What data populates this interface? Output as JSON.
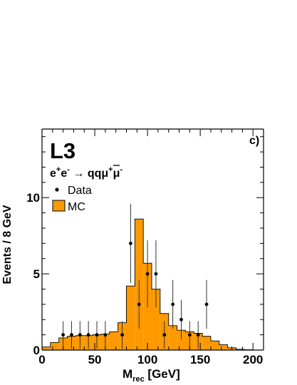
{
  "chart_data": {
    "type": "histogram",
    "experiment_label": "L3",
    "panel_label": "c)",
    "process": {
      "base": "e",
      "sup1": "+",
      "base2": "e",
      "sup2": "-",
      "arrow": " → ",
      "q": "q",
      "qbar": "q",
      "mu": "μ",
      "sup3": "+",
      "mu2": "μ",
      "sup4": "-"
    },
    "xlabel": {
      "main": "M",
      "sub": "rec",
      "unit": " [GeV]"
    },
    "ylabel": "Events / 8 GeV",
    "xlim": [
      0,
      210
    ],
    "ylim": [
      0,
      14.5
    ],
    "x_ticks": [
      0,
      50,
      100,
      150,
      200
    ],
    "x_tick_labels": [
      "0",
      "50",
      "100",
      "150",
      "200"
    ],
    "y_ticks": [
      0,
      5,
      10
    ],
    "y_tick_labels": [
      "0",
      "5",
      "10"
    ],
    "legend": {
      "placement": "top-left",
      "data_label": "Data",
      "mc_label": "MC"
    },
    "colors": {
      "mc_fill": "#ff9900",
      "mc_edge": "#000000",
      "data": "#000000",
      "axes": "#000000"
    },
    "mc_histogram": {
      "bin_edges": [
        0,
        8,
        16,
        24,
        32,
        40,
        48,
        56,
        64,
        72,
        80,
        88,
        96,
        104,
        112,
        120,
        128,
        136,
        144,
        152,
        160,
        168,
        176,
        184,
        192,
        200
      ],
      "values": [
        0.2,
        0.5,
        0.8,
        0.9,
        0.95,
        0.95,
        1.0,
        1.05,
        1.2,
        1.8,
        4.2,
        8.6,
        5.7,
        4.0,
        2.4,
        1.6,
        1.3,
        1.2,
        1.1,
        0.9,
        0.6,
        0.35,
        0.15,
        0.05,
        0.02
      ]
    },
    "data_points": {
      "x": [
        20,
        28,
        36,
        44,
        52,
        60,
        76,
        84,
        92,
        100,
        108,
        116,
        124,
        132,
        140,
        148,
        156
      ],
      "y": [
        1,
        1,
        1,
        1,
        1,
        1,
        1,
        7,
        3,
        5,
        5,
        1,
        3,
        2,
        1,
        1,
        3
      ],
      "err_low": [
        0.9,
        0.9,
        0.9,
        0.9,
        0.9,
        0.9,
        0.9,
        2.6,
        1.6,
        2.2,
        2.2,
        0.9,
        1.6,
        1.3,
        0.9,
        0.9,
        1.6
      ],
      "err_high": [
        0.9,
        0.9,
        0.9,
        0.9,
        0.9,
        0.9,
        0.9,
        2.6,
        1.6,
        2.2,
        2.2,
        0.9,
        1.6,
        1.3,
        0.9,
        0.9,
        1.6
      ]
    }
  }
}
